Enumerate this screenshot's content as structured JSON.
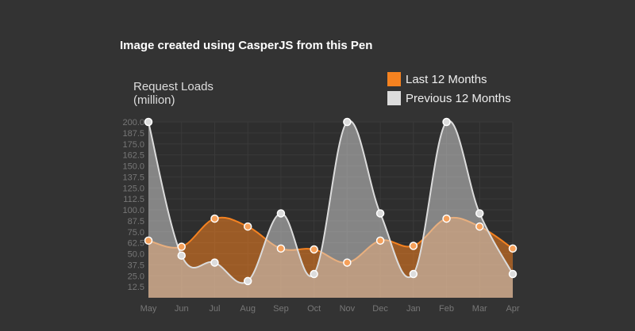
{
  "caption": "Image created using CasperJS from this Pen",
  "chart_data": {
    "type": "area",
    "title": "",
    "ylabel_lines": [
      "Request Loads",
      "(million)"
    ],
    "xlabel": "",
    "categories": [
      "May",
      "Jun",
      "Jul",
      "Aug",
      "Sep",
      "Oct",
      "Nov",
      "Dec",
      "Jan",
      "Feb",
      "Mar",
      "Apr"
    ],
    "ylim": [
      0,
      200
    ],
    "yticks": [
      "12.5",
      "25.0",
      "37.5",
      "50.0",
      "62.5",
      "75.0",
      "87.5",
      "100.0",
      "112.5",
      "125.0",
      "137.5",
      "150.0",
      "162.5",
      "175.0",
      "187.5",
      "200.0"
    ],
    "grid": true,
    "legend_position": "top-right",
    "series": [
      {
        "name": "Last 12 Months",
        "color": "#f58220",
        "values": [
          65,
          58,
          90,
          81,
          56,
          55,
          40,
          65,
          59,
          90,
          81,
          56
        ]
      },
      {
        "name": "Previous 12 Months",
        "color": "#dcdcdc",
        "values": [
          200,
          48,
          40,
          19,
          96,
          27,
          200,
          96,
          27,
          200,
          96,
          27
        ]
      }
    ]
  }
}
